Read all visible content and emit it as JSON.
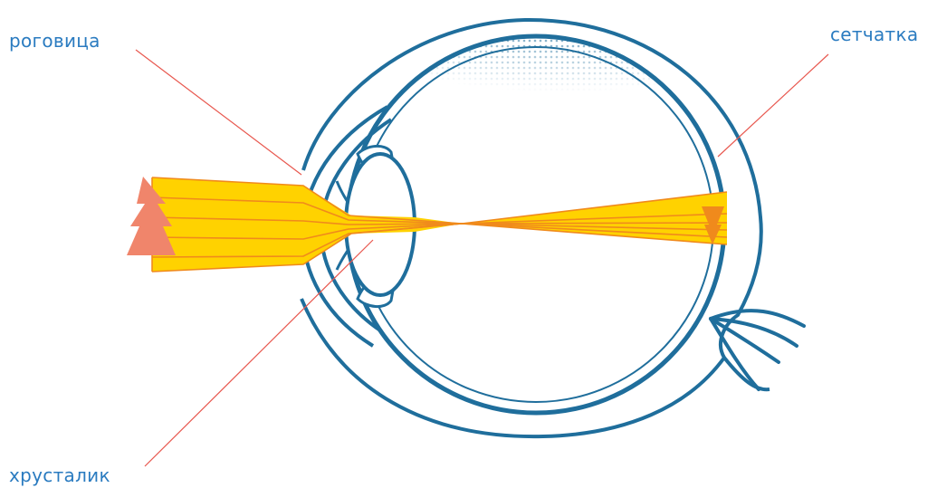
{
  "labels": {
    "cornea": "роговица",
    "retina": "сетчатка",
    "lens": "хрусталик"
  },
  "colors": {
    "outline": "#1f6e9c",
    "label_text": "#2a7bc0",
    "leader_line": "#e8584f",
    "light_beam": "#ffd200",
    "ray_line": "#f08a1c",
    "object": "#f0856b",
    "sclera_dots": "#1f6e9c"
  }
}
